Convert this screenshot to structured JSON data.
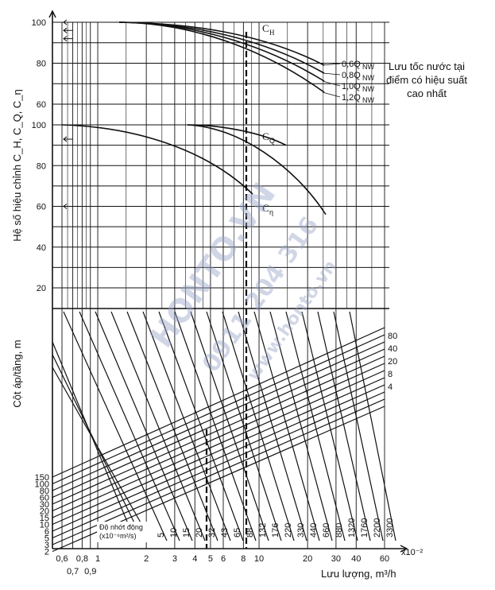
{
  "chart_data": {
    "type": "line",
    "title": "",
    "upper_panel": {
      "ylabel": "Hệ số hiệu chỉnh C_H, C_Q, C_η",
      "yticks_top": [
        60,
        80,
        100
      ],
      "yticks_bottom": [
        20,
        40,
        60,
        80,
        100
      ],
      "grid": true,
      "series": [
        {
          "name": "C_H",
          "label_sub": "H",
          "values_note": "family of 4 curves"
        },
        {
          "name": "C_Q",
          "label_sub": "Q"
        },
        {
          "name": "C_η",
          "label_sub": "η"
        }
      ],
      "ch_flow_labels": [
        "0,6Q",
        "0,8Q",
        "1,0Q",
        "1,2Q"
      ],
      "ch_flow_sub": "NW",
      "side_note": [
        "Lưu tốc nước tại",
        "điểm có hiệu suất",
        "cao nhất"
      ]
    },
    "lower_panel": {
      "ylabel": "Cột áp/tầng, m",
      "head_values": [
        "150",
        "100",
        "80",
        "60",
        "30",
        "20",
        "15",
        "10",
        "6",
        "5",
        "3",
        "2"
      ],
      "right_head_values": [
        "80",
        "40",
        "20",
        "8",
        "4"
      ],
      "viscosity_label": [
        "Độ nhớt động",
        "(x10⁻⁶m²/s)"
      ],
      "viscosity_values": [
        "5",
        "10",
        "15",
        "20",
        "32",
        "43",
        "65",
        "88",
        "132",
        "176",
        "220",
        "330",
        "440",
        "660",
        "880",
        "1320",
        "1760",
        "2200",
        "3300"
      ]
    },
    "x_axis": {
      "xlabel": "Lưu lượng, m³/h",
      "scale_note": "x10⁻²",
      "scale": "log",
      "ticks": [
        "0,6",
        "0,7",
        "0,8",
        "0,9",
        "1",
        "2",
        "3",
        "4",
        "5",
        "6",
        "8",
        "10",
        "20",
        "30",
        "40",
        "60"
      ]
    }
  },
  "watermark": [
    "HONTO.VN",
    "0911 204 316",
    "www.honto.vn"
  ]
}
